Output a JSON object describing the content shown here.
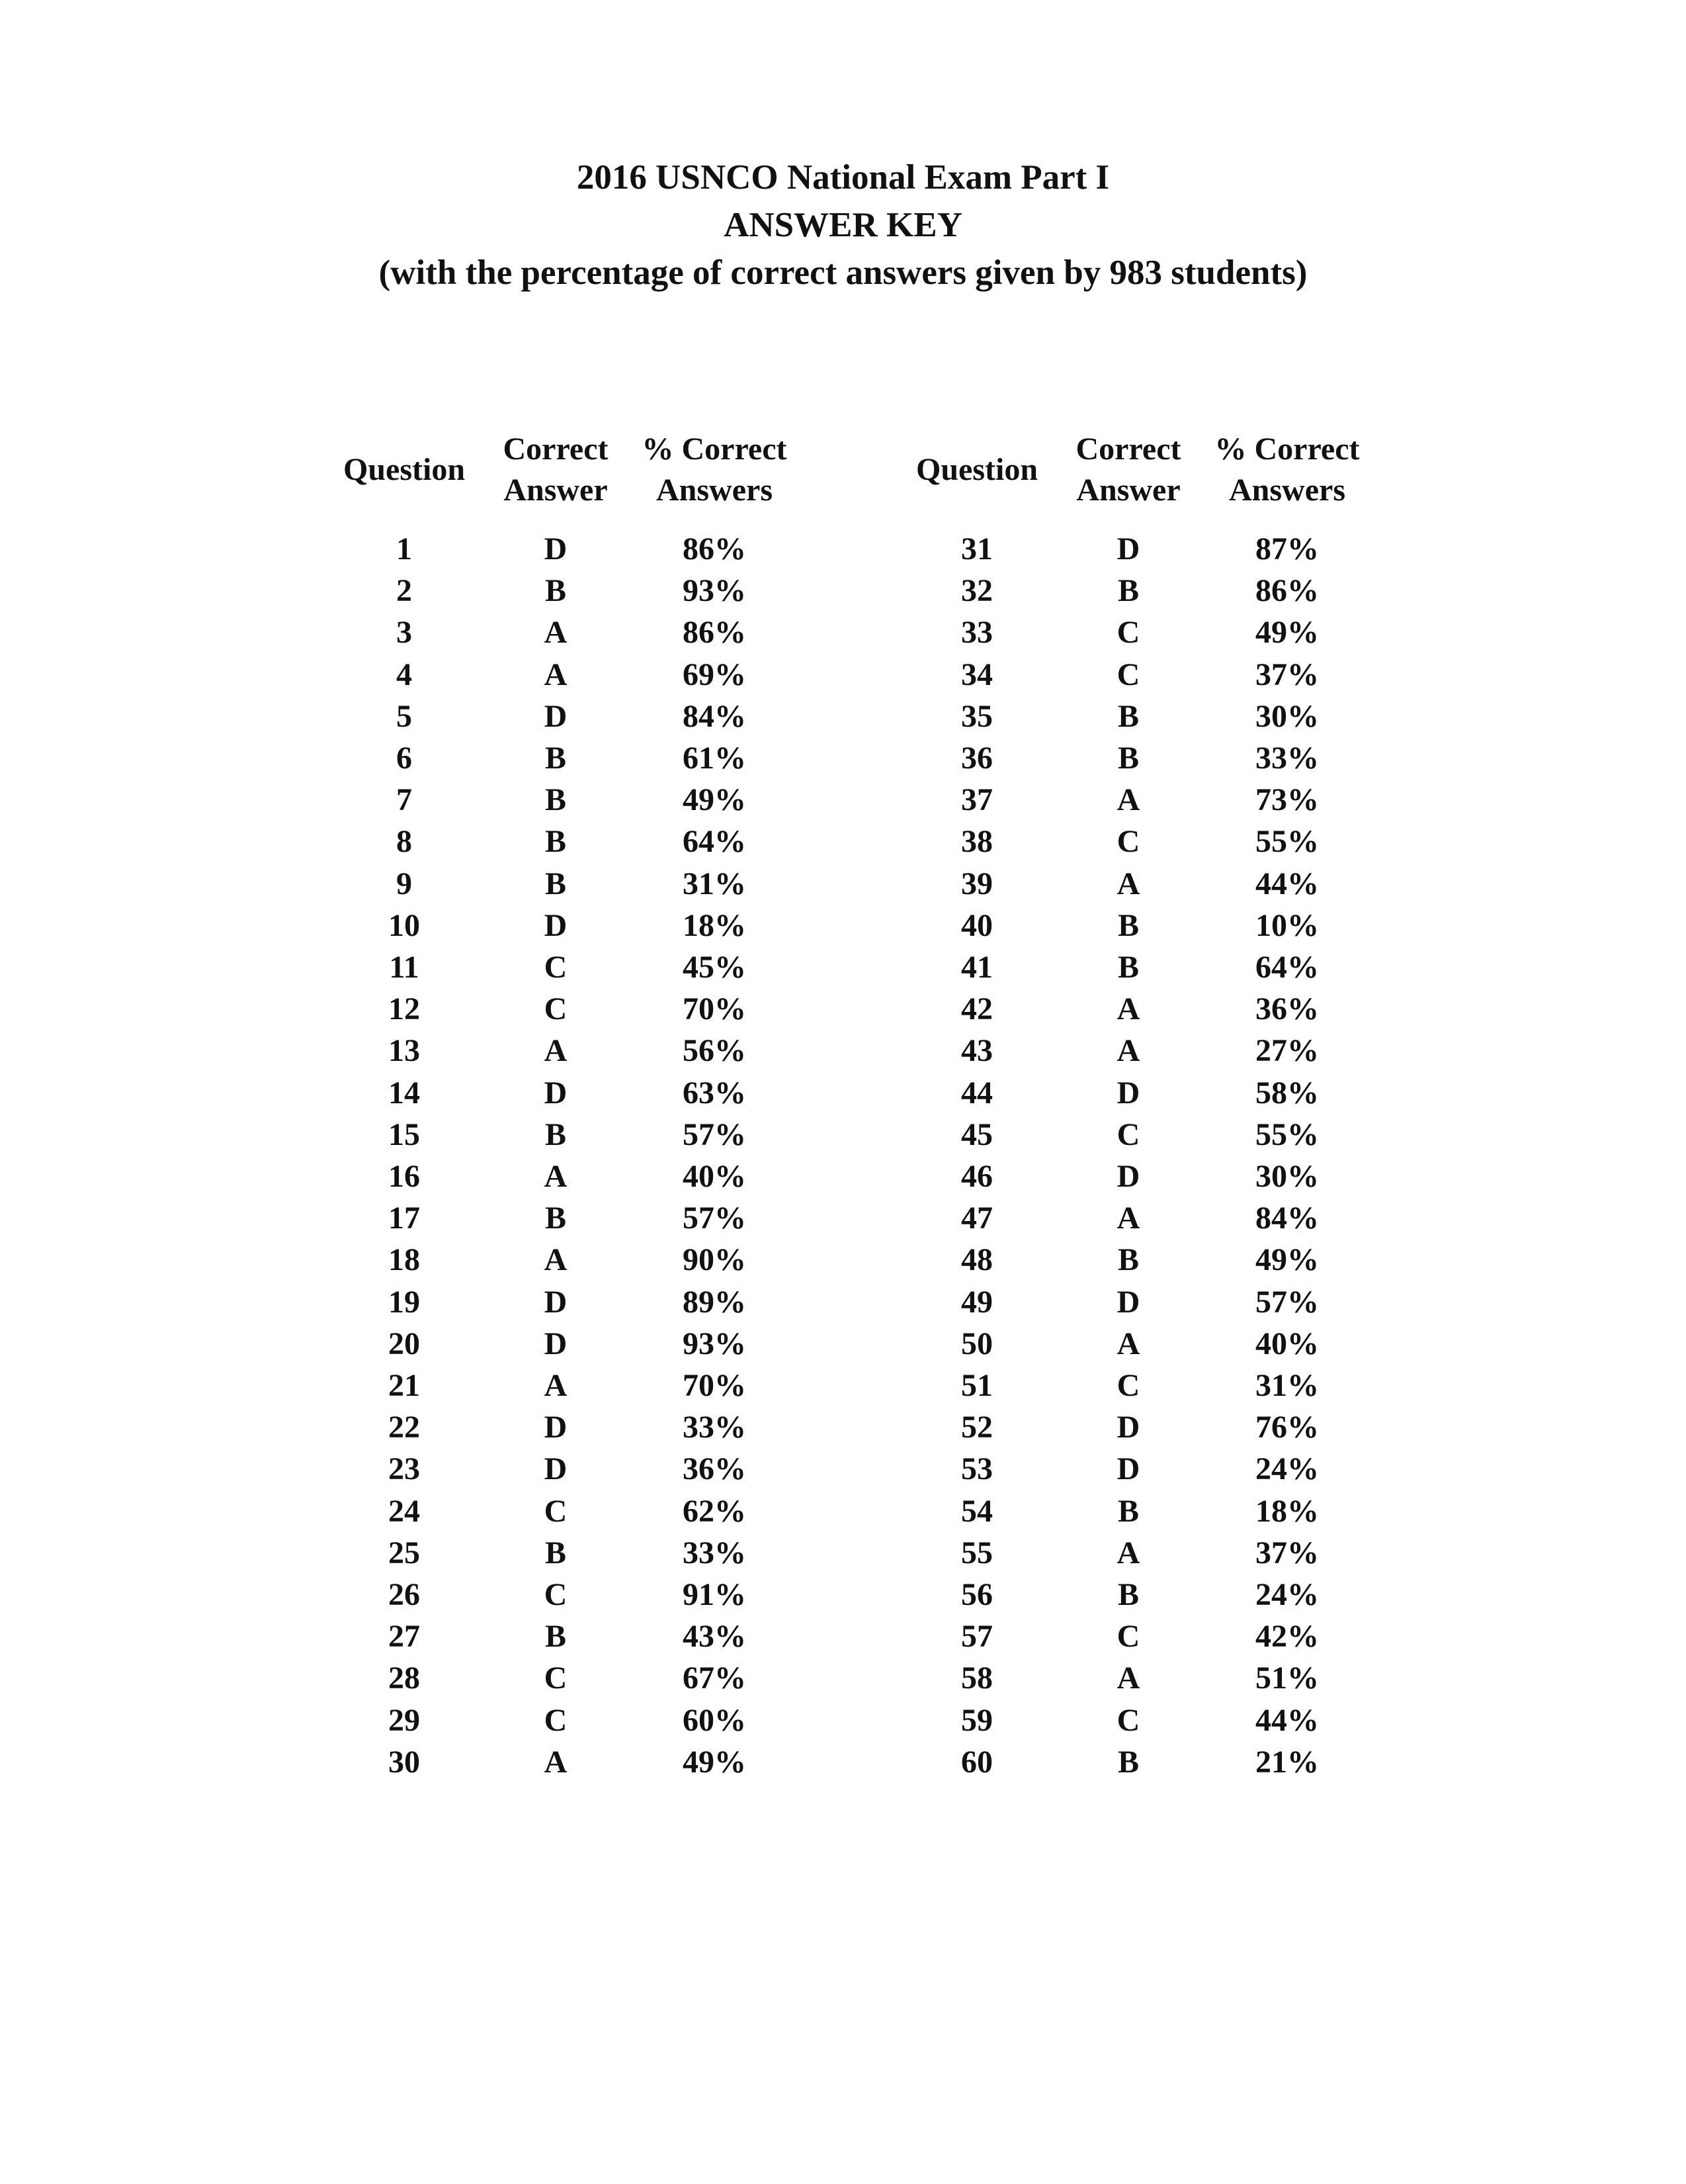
{
  "header": {
    "line1": "2016 USNCO National Exam Part I",
    "line2": "ANSWER KEY",
    "line3": "(with the percentage of correct answers given by 983 students)"
  },
  "columns": {
    "question": "Question",
    "correct_answer_l1": "Correct",
    "correct_answer_l2": "Answer",
    "pct_correct_l1": "% Correct",
    "pct_correct_l2": "Answers"
  },
  "left_rows": [
    {
      "q": "1",
      "a": "D",
      "p": "86%"
    },
    {
      "q": "2",
      "a": "B",
      "p": "93%"
    },
    {
      "q": "3",
      "a": "A",
      "p": "86%"
    },
    {
      "q": "4",
      "a": "A",
      "p": "69%"
    },
    {
      "q": "5",
      "a": "D",
      "p": "84%"
    },
    {
      "q": "6",
      "a": "B",
      "p": "61%"
    },
    {
      "q": "7",
      "a": "B",
      "p": "49%"
    },
    {
      "q": "8",
      "a": "B",
      "p": "64%"
    },
    {
      "q": "9",
      "a": "B",
      "p": "31%"
    },
    {
      "q": "10",
      "a": "D",
      "p": "18%"
    },
    {
      "q": "11",
      "a": "C",
      "p": "45%"
    },
    {
      "q": "12",
      "a": "C",
      "p": "70%"
    },
    {
      "q": "13",
      "a": "A",
      "p": "56%"
    },
    {
      "q": "14",
      "a": "D",
      "p": "63%"
    },
    {
      "q": "15",
      "a": "B",
      "p": "57%"
    },
    {
      "q": "16",
      "a": "A",
      "p": "40%"
    },
    {
      "q": "17",
      "a": "B",
      "p": "57%"
    },
    {
      "q": "18",
      "a": "A",
      "p": "90%"
    },
    {
      "q": "19",
      "a": "D",
      "p": "89%"
    },
    {
      "q": "20",
      "a": "D",
      "p": "93%"
    },
    {
      "q": "21",
      "a": "A",
      "p": "70%"
    },
    {
      "q": "22",
      "a": "D",
      "p": "33%"
    },
    {
      "q": "23",
      "a": "D",
      "p": "36%"
    },
    {
      "q": "24",
      "a": "C",
      "p": "62%"
    },
    {
      "q": "25",
      "a": "B",
      "p": "33%"
    },
    {
      "q": "26",
      "a": "C",
      "p": "91%"
    },
    {
      "q": "27",
      "a": "B",
      "p": "43%"
    },
    {
      "q": "28",
      "a": "C",
      "p": "67%"
    },
    {
      "q": "29",
      "a": "C",
      "p": "60%"
    },
    {
      "q": "30",
      "a": "A",
      "p": "49%"
    }
  ],
  "right_rows": [
    {
      "q": "31",
      "a": "D",
      "p": "87%"
    },
    {
      "q": "32",
      "a": "B",
      "p": "86%"
    },
    {
      "q": "33",
      "a": "C",
      "p": "49%"
    },
    {
      "q": "34",
      "a": "C",
      "p": "37%"
    },
    {
      "q": "35",
      "a": "B",
      "p": "30%"
    },
    {
      "q": "36",
      "a": "B",
      "p": "33%"
    },
    {
      "q": "37",
      "a": "A",
      "p": "73%"
    },
    {
      "q": "38",
      "a": "C",
      "p": "55%"
    },
    {
      "q": "39",
      "a": "A",
      "p": "44%"
    },
    {
      "q": "40",
      "a": "B",
      "p": "10%"
    },
    {
      "q": "41",
      "a": "B",
      "p": "64%"
    },
    {
      "q": "42",
      "a": "A",
      "p": "36%"
    },
    {
      "q": "43",
      "a": "A",
      "p": "27%"
    },
    {
      "q": "44",
      "a": "D",
      "p": "58%"
    },
    {
      "q": "45",
      "a": "C",
      "p": "55%"
    },
    {
      "q": "46",
      "a": "D",
      "p": "30%"
    },
    {
      "q": "47",
      "a": "A",
      "p": "84%"
    },
    {
      "q": "48",
      "a": "B",
      "p": "49%"
    },
    {
      "q": "49",
      "a": "D",
      "p": "57%"
    },
    {
      "q": "50",
      "a": "A",
      "p": "40%"
    },
    {
      "q": "51",
      "a": "C",
      "p": "31%"
    },
    {
      "q": "52",
      "a": "D",
      "p": "76%"
    },
    {
      "q": "53",
      "a": "D",
      "p": "24%"
    },
    {
      "q": "54",
      "a": "B",
      "p": "18%"
    },
    {
      "q": "55",
      "a": "A",
      "p": "37%"
    },
    {
      "q": "56",
      "a": "B",
      "p": "24%"
    },
    {
      "q": "57",
      "a": "C",
      "p": "42%"
    },
    {
      "q": "58",
      "a": "A",
      "p": "51%"
    },
    {
      "q": "59",
      "a": "C",
      "p": "44%"
    },
    {
      "q": "60",
      "a": "B",
      "p": "21%"
    }
  ]
}
